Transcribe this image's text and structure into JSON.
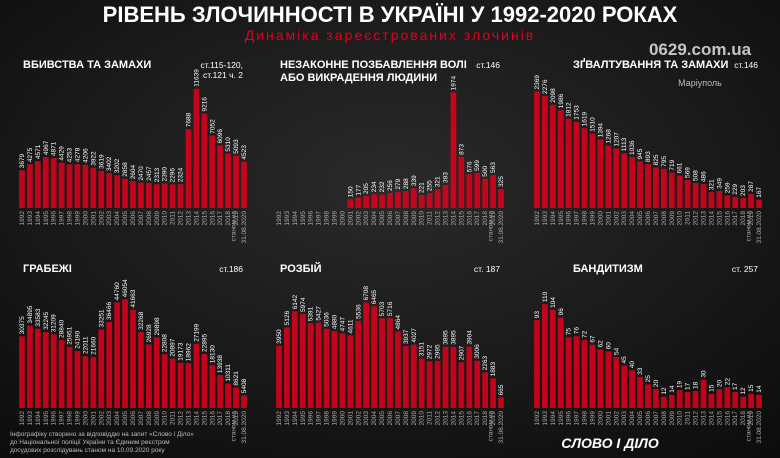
{
  "header": {
    "title": "РІВЕНЬ ЗЛОЧИННОСТІ В УКРАЇНІ У 1992-2020 РОКАХ",
    "subtitle": "Динаміка зареєстрованих злочинів"
  },
  "watermark": {
    "site": "0629.com.ua",
    "city": "Маріуполь"
  },
  "footer": {
    "note": [
      "Інфографіку створено за відповіддю на запит «Слово і Діло»",
      "до Національної поліції України та Єдиним реєстром",
      "досудових розслідувань станом на 10.09.2020 року"
    ],
    "logo": "СЛОВО І ДІЛО"
  },
  "chart_data": [
    {
      "type": "bar",
      "title": [
        "ВБИВСТВА ТА ЗАМАХИ"
      ],
      "article": [
        "ст.115-120,",
        "ст.121 ч. 2"
      ],
      "note": "станом на",
      "color": "#e0001b",
      "ylim": [
        0,
        12000
      ],
      "categories": [
        "1992",
        "1993",
        "1994",
        "1995",
        "1996",
        "1997",
        "1998",
        "1999",
        "2000",
        "2001",
        "2002",
        "2003",
        "2004",
        "2005",
        "2006",
        "2007",
        "2008",
        "2009",
        "2010",
        "2011",
        "2012",
        "2013",
        "2014",
        "2015",
        "2016",
        "2017",
        "2018",
        "2019",
        "31.08.2020"
      ],
      "values": [
        3679,
        4275,
        4571,
        4967,
        4871,
        4429,
        4253,
        4278,
        4206,
        3922,
        3619,
        3402,
        3202,
        2858,
        2604,
        2470,
        2457,
        2313,
        2390,
        2296,
        2324,
        7688,
        11639,
        9216,
        7052,
        6096,
        5310,
        5093,
        4523
      ]
    },
    {
      "type": "bar",
      "title": [
        "НЕЗАКОННЕ ПОЗБАВЛЕННЯ ВОЛІ",
        "АБО ВИКРАДЕННЯ ЛЮДИНИ"
      ],
      "article": [
        "ст.146"
      ],
      "note": "станом на",
      "color": "#e0001b",
      "ylim": [
        0,
        2100
      ],
      "categories": [
        "1992",
        "1993",
        "1994",
        "1995",
        "1996",
        "1997",
        "1998",
        "1999",
        "2000",
        "2001",
        "2002",
        "2003",
        "2004",
        "2005",
        "2006",
        "2007",
        "2008",
        "2009",
        "2010",
        "2011",
        "2012",
        "2013",
        "2014",
        "2015",
        "2016",
        "2017",
        "2018",
        "2019",
        "31.08.2020"
      ],
      "values": [
        null,
        null,
        null,
        null,
        null,
        null,
        null,
        null,
        null,
        150,
        177,
        205,
        234,
        232,
        256,
        279,
        288,
        339,
        221,
        255,
        321,
        393,
        1974,
        873,
        576,
        599,
        500,
        563,
        325
      ]
    },
    {
      "type": "bar",
      "title": [
        "ЗҐВАЛТУВАННЯ ТА ЗАМАХИ"
      ],
      "article": [
        "ст.146"
      ],
      "note": "станом на",
      "color": "#e0001b",
      "ylim": [
        0,
        2500
      ],
      "categories": [
        "1992",
        "1993",
        "1994",
        "1995",
        "1996",
        "1997",
        "1998",
        "1999",
        "2000",
        "2001",
        "2002",
        "2003",
        "2004",
        "2005",
        "2006",
        "2007",
        "2008",
        "2009",
        "2010",
        "2011",
        "2012",
        "2013",
        "2014",
        "2015",
        "2016",
        "2017",
        "2018",
        "2019",
        "31.08.2020"
      ],
      "values": [
        2369,
        2276,
        2098,
        1986,
        1812,
        1753,
        1619,
        1510,
        1394,
        1268,
        1207,
        1113,
        1036,
        945,
        893,
        825,
        795,
        719,
        661,
        569,
        508,
        486,
        321,
        349,
        259,
        229,
        203,
        287,
        167
      ]
    },
    {
      "type": "bar",
      "title": [
        "ГРАБЕЖІ"
      ],
      "article": [
        "ст.186"
      ],
      "note": "станом на",
      "color": "#e0001b",
      "ylim": [
        0,
        50000
      ],
      "categories": [
        "1992",
        "1993",
        "1994",
        "1995",
        "1996",
        "1997",
        "1998",
        "1999",
        "2000",
        "2001",
        "2002",
        "2003",
        "2004",
        "2005",
        "2006",
        "2007",
        "2008",
        "2009",
        "2010",
        "2011",
        "2012",
        "2013",
        "2014",
        "2015",
        "2016",
        "2017",
        "2018",
        "2019",
        "31.08.2020"
      ],
      "values": [
        30375,
        34895,
        33583,
        32245,
        31209,
        28840,
        25951,
        24190,
        22011,
        21660,
        33251,
        36466,
        44760,
        46054,
        41663,
        32268,
        26928,
        29898,
        22808,
        20897,
        19173,
        18962,
        27199,
        22895,
        18130,
        13938,
        10311,
        8621,
        5408
      ]
    },
    {
      "type": "bar",
      "title": [
        "РОЗБІЙ"
      ],
      "article": [
        "ст. 187"
      ],
      "note": "станом на",
      "color": "#e0001b",
      "ylim": [
        0,
        7500
      ],
      "categories": [
        "1992",
        "1993",
        "1994",
        "1995",
        "1996",
        "1997",
        "1998",
        "1999",
        "2000",
        "2001",
        "2002",
        "2003",
        "2004",
        "2005",
        "2006",
        "2007",
        "2008",
        "2009",
        "2010",
        "2011",
        "2012",
        "2013",
        "2014",
        "2015",
        "2016",
        "2017",
        "2018",
        "2019",
        "31.08.2020"
      ],
      "values": [
        3950,
        5126,
        6142,
        5974,
        5391,
        5427,
        5036,
        4880,
        4747,
        4611,
        5536,
        6708,
        6465,
        5703,
        5716,
        4864,
        3937,
        4027,
        3151,
        2972,
        2995,
        3895,
        3895,
        2907,
        3904,
        3006,
        2263,
        1883,
        665
      ]
    },
    {
      "type": "bar",
      "title": [
        "БАНДИТИЗМ"
      ],
      "article": [
        "ст. 257"
      ],
      "note": "станом на",
      "color": "#e0001b",
      "ylim": [
        0,
        125
      ],
      "categories": [
        "1992",
        "1993",
        "1994",
        "1995",
        "1996",
        "1997",
        "1998",
        "1999",
        "2000",
        "2001",
        "2002",
        "2003",
        "2004",
        "2005",
        "2006",
        "2007",
        "2008",
        "2009",
        "2010",
        "2011",
        "2012",
        "2013",
        "2014",
        "2015",
        "2016",
        "2017",
        "2018",
        "2019",
        "31.08.2020"
      ],
      "values": [
        93,
        110,
        104,
        96,
        75,
        76,
        72,
        67,
        62,
        60,
        54,
        45,
        40,
        33,
        25,
        20,
        12,
        14,
        19,
        17,
        18,
        30,
        15,
        20,
        22,
        17,
        12,
        15,
        14
      ]
    }
  ]
}
